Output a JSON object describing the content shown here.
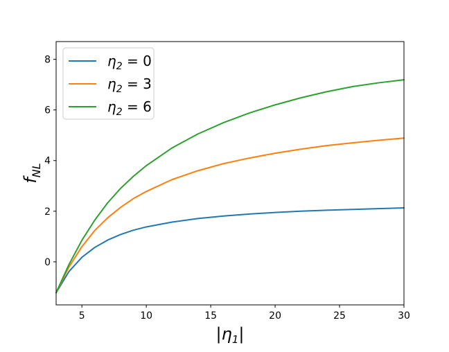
{
  "chart_data": {
    "type": "line",
    "title": "",
    "xlabel": "|η₁|",
    "ylabel": "f_NL",
    "ylabel_main": "f",
    "ylabel_sub": "NL",
    "xlim": [
      3,
      30
    ],
    "ylim": [
      -1.7,
      8.7
    ],
    "xticks": [
      5,
      10,
      15,
      20,
      25,
      30
    ],
    "yticks": [
      0,
      2,
      4,
      6,
      8
    ],
    "xtick_labels": [
      "5",
      "10",
      "15",
      "20",
      "25",
      "30"
    ],
    "ytick_labels": [
      "0",
      "2",
      "4",
      "6",
      "8"
    ],
    "grid": false,
    "legend_position": "top-left",
    "x": [
      3,
      4,
      5,
      6,
      7,
      8,
      9,
      10,
      12,
      14,
      16,
      18,
      20,
      22,
      24,
      26,
      28,
      30
    ],
    "series": [
      {
        "name": "η₂ = 0",
        "color": "#1f77b4",
        "values": [
          -1.22,
          -0.38,
          0.18,
          0.57,
          0.86,
          1.08,
          1.25,
          1.38,
          1.57,
          1.71,
          1.81,
          1.89,
          1.95,
          2.0,
          2.04,
          2.07,
          2.1,
          2.13
        ]
      },
      {
        "name": "η₂ = 3",
        "color": "#ff7f0e",
        "values": [
          -1.22,
          -0.2,
          0.6,
          1.24,
          1.74,
          2.15,
          2.5,
          2.78,
          3.25,
          3.6,
          3.88,
          4.1,
          4.29,
          4.45,
          4.59,
          4.7,
          4.8,
          4.89
        ]
      },
      {
        "name": "η₂ = 6",
        "color": "#2ca02c",
        "values": [
          -1.22,
          -0.1,
          0.85,
          1.65,
          2.33,
          2.9,
          3.38,
          3.8,
          4.5,
          5.05,
          5.5,
          5.88,
          6.2,
          6.48,
          6.72,
          6.92,
          7.07,
          7.19
        ]
      }
    ],
    "legend_labels": [
      {
        "main": "η",
        "sub": "2",
        "rest": " = 0"
      },
      {
        "main": "η",
        "sub": "2",
        "rest": " = 3"
      },
      {
        "main": "η",
        "sub": "2",
        "rest": " = 6"
      }
    ],
    "xlabel_parts": {
      "left": "|",
      "main": "η",
      "sub": "1",
      "right": "|"
    }
  }
}
